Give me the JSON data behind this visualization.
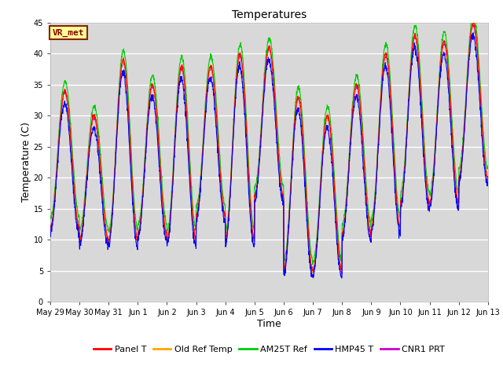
{
  "title": "Temperatures",
  "xlabel": "Time",
  "ylabel": "Temperature (C)",
  "ylim": [
    0,
    45
  ],
  "yticks": [
    0,
    5,
    10,
    15,
    20,
    25,
    30,
    35,
    40,
    45
  ],
  "background_color": "#d8d8d8",
  "plot_bg_color": "#d8d8d8",
  "annotation_text": "VR_met",
  "annotation_box_facecolor": "#ffff99",
  "annotation_border_color": "#8b2200",
  "legend_labels": [
    "Panel T",
    "Old Ref Temp",
    "AM25T Ref",
    "HMP45 T",
    "CNR1 PRT"
  ],
  "line_colors": [
    "#ff0000",
    "#ffa500",
    "#00cc00",
    "#0000ff",
    "#cc00cc"
  ],
  "x_tick_labels": [
    "May 29",
    "May 30",
    "May 31",
    "Jun 1",
    "Jun 2",
    "Jun 3",
    "Jun 4",
    "Jun 5",
    "Jun 6",
    "Jun 7",
    "Jun 8",
    "Jun 9",
    "Jun 10",
    "Jun 11",
    "Jun 12",
    "Jun 13"
  ],
  "n_days": 15,
  "pts_per_day": 144,
  "title_fontsize": 10,
  "axis_label_fontsize": 9,
  "tick_fontsize": 7,
  "legend_fontsize": 8,
  "daily_mins": [
    12,
    10,
    10,
    11,
    10,
    14,
    10,
    17,
    5,
    5,
    11,
    12,
    16,
    16,
    20
  ],
  "daily_maxs": [
    34,
    30,
    39,
    35,
    38,
    38,
    40,
    41,
    33,
    30,
    35,
    40,
    43,
    42,
    45
  ]
}
